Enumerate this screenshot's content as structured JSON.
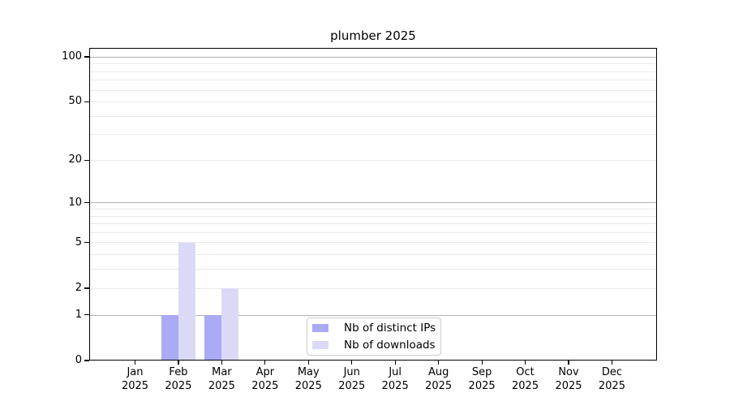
{
  "title": "plumber 2025",
  "colors": {
    "grid_major": "#b2b2b2",
    "grid_minor": "#e9e9e9",
    "axis": "#000000",
    "legend_border": "#cccccc",
    "background": "#ffffff"
  },
  "chart_data": {
    "type": "bar",
    "title": "plumber 2025",
    "xlabel": "",
    "ylabel": "",
    "grid": true,
    "legend_position": "lower center",
    "categories": [
      {
        "month": "Jan",
        "year": "2025"
      },
      {
        "month": "Feb",
        "year": "2025"
      },
      {
        "month": "Mar",
        "year": "2025"
      },
      {
        "month": "Apr",
        "year": "2025"
      },
      {
        "month": "May",
        "year": "2025"
      },
      {
        "month": "Jun",
        "year": "2025"
      },
      {
        "month": "Jul",
        "year": "2025"
      },
      {
        "month": "Aug",
        "year": "2025"
      },
      {
        "month": "Sep",
        "year": "2025"
      },
      {
        "month": "Oct",
        "year": "2025"
      },
      {
        "month": "Nov",
        "year": "2025"
      },
      {
        "month": "Dec",
        "year": "2025"
      }
    ],
    "series": [
      {
        "name": "Nb of distinct IPs",
        "color": "#aaaaf5",
        "values": [
          0,
          1,
          1,
          0,
          0,
          0,
          0,
          0,
          0,
          0,
          0,
          0
        ]
      },
      {
        "name": "Nb of downloads",
        "color": "#dadaf7",
        "values": [
          0,
          5,
          2,
          0,
          0,
          0,
          0,
          0,
          0,
          0,
          0,
          0
        ]
      }
    ],
    "y_axis": {
      "scale": "log10(1+y)",
      "ylim": [
        0,
        114
      ],
      "ticks": [
        100,
        50,
        20,
        10,
        5,
        2,
        1,
        0
      ],
      "grid_major": [
        100,
        10,
        1
      ],
      "grid_minor": [
        90,
        80,
        70,
        60,
        50,
        40,
        30,
        20,
        9,
        8,
        7,
        6,
        5,
        4,
        3,
        2
      ]
    }
  }
}
